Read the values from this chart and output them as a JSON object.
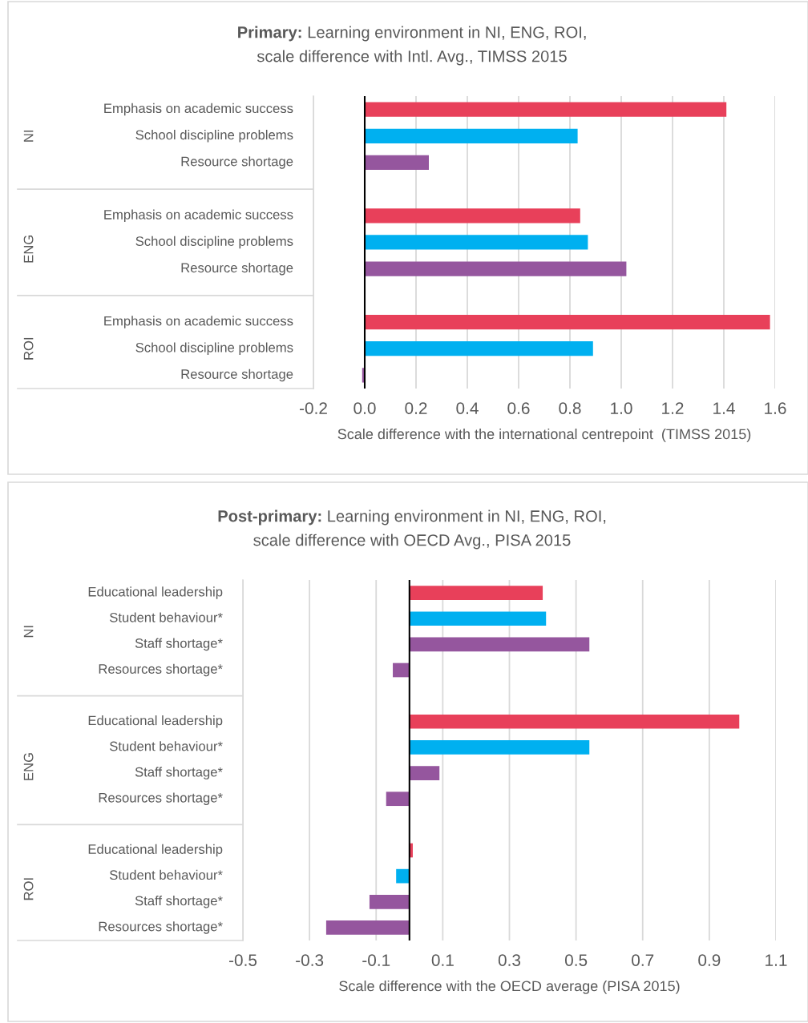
{
  "chart_data": [
    {
      "type": "bar",
      "orientation": "horizontal",
      "title": "Primary: Learning environment in NI, ENG, ROI,\nscale difference with Intl. Avg., TIMSS 2015",
      "categories": [
        "Emphasis on academic success",
        "School discipline problems",
        "Resource shortage",
        null,
        "Emphasis on academic success",
        "School discipline problems",
        "Resource shortage",
        null,
        "Emphasis on academic success",
        "School discipline problems",
        "Resource shortage"
      ],
      "values": [
        1.41,
        0.83,
        0.25,
        null,
        0.84,
        0.87,
        1.02,
        null,
        1.58,
        0.89,
        -0.01
      ],
      "colors": [
        "#e8405a",
        "#00b0f0",
        "#95569e",
        null,
        "#e8405a",
        "#00b0f0",
        "#95569e",
        null,
        "#e8405a",
        "#00b0f0",
        "#95569e"
      ],
      "annotations": [
        "NI",
        "ENG",
        "ROI"
      ],
      "xlabel": "Scale difference with the international centrepoint  (TIMSS 2015)",
      "xlim": [
        -0.2,
        1.6
      ],
      "xticks": [
        -0.2,
        {
          "value": 0,
          "label": "0.0"
        },
        0.2,
        0.4,
        0.6,
        0.8,
        {
          "value": 1,
          "label": "1.0"
        },
        1.2,
        1.4,
        1.6
      ],
      "grid": "x"
    },
    {
      "type": "bar",
      "orientation": "horizontal",
      "title": "Post-primary: Learning environment in NI, ENG, ROI,\nscale difference with OECD Avg., PISA 2015",
      "categories": [
        "Educational leadership",
        "Student behaviour*",
        "Staff shortage*",
        "Resources shortage*",
        null,
        "Educational leadership",
        "Student behaviour*",
        "Staff shortage*",
        "Resources shortage*",
        null,
        "Educational leadership",
        "Student behaviour*",
        "Staff shortage*",
        "Resources shortage*"
      ],
      "values": [
        0.4,
        0.41,
        0.54,
        -0.05,
        null,
        0.99,
        0.54,
        0.09,
        -0.07,
        null,
        0.01,
        -0.04,
        -0.12,
        -0.25
      ],
      "colors": [
        "#e8405a",
        "#00b0f0",
        "#95569e",
        "#95569e",
        null,
        "#e8405a",
        "#00b0f0",
        "#95569e",
        "#95569e",
        null,
        "#e8405a",
        "#00b0f0",
        "#95569e",
        "#95569e"
      ],
      "annotations": [
        "NI",
        "ENG",
        "ROI"
      ],
      "xlabel": "Scale difference with the OECD average (PISA 2015)",
      "xlim": [
        -0.5,
        1.1
      ],
      "xticks": [
        -0.5,
        -0.3,
        -0.1,
        0.1,
        0.3,
        0.5,
        0.7,
        0.9,
        1.1
      ],
      "grid": "x"
    }
  ]
}
